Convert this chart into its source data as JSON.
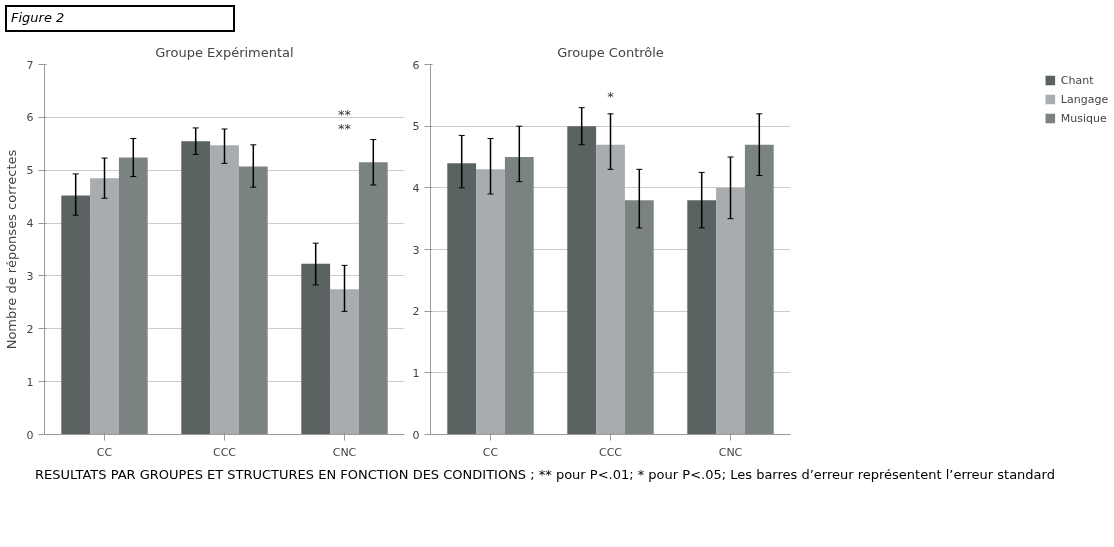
{
  "chart_data": [
    {
      "type": "bar",
      "title": "Groupe Expérimental",
      "ylabel": "Nombre de réponses correctes",
      "categories": [
        "CC",
        "CCC",
        "CNC"
      ],
      "ylim": [
        0,
        7
      ],
      "yticks": [
        0,
        1,
        2,
        3,
        4,
        5,
        6,
        7
      ],
      "grid": "y",
      "series": [
        {
          "color": "#5a6262",
          "values": [
            4.52,
            5.55,
            3.23
          ],
          "errors": [
            [
              4.15,
              4.93
            ],
            [
              5.3,
              5.8
            ],
            [
              2.83,
              3.62
            ]
          ]
        },
        {
          "color": "#a9acae",
          "values": [
            4.85,
            5.47,
            2.75
          ],
          "errors": [
            [
              4.47,
              5.23
            ],
            [
              5.13,
              5.78
            ],
            [
              2.33,
              3.2
            ]
          ]
        },
        {
          "color": "#7b8282",
          "values": [
            5.24,
            5.07,
            5.15
          ],
          "errors": [
            [
              4.88,
              5.6
            ],
            [
              4.68,
              5.48
            ],
            [
              4.72,
              5.58
            ]
          ]
        }
      ],
      "annotations": [
        "Figure 2",
        "**",
        "**"
      ]
    },
    {
      "type": "bar",
      "title": "Groupe Contrôle",
      "categories": [
        "CC",
        "CCC",
        "CNC"
      ],
      "ylim": [
        0,
        6
      ],
      "yticks": [
        0,
        1,
        2,
        3,
        4,
        5,
        6
      ],
      "grid": "y",
      "legend": "top right",
      "series": [
        {
          "name": "Chant",
          "color": "#5a6262",
          "values": [
            4.4,
            5.0,
            3.8
          ],
          "errors": [
            [
              4.0,
              4.85
            ],
            [
              4.7,
              5.3
            ],
            [
              3.35,
              4.25
            ]
          ]
        },
        {
          "name": "Langage",
          "color": "#a9acae",
          "values": [
            4.3,
            4.7,
            4.0
          ],
          "errors": [
            [
              3.9,
              4.8
            ],
            [
              4.3,
              5.2
            ],
            [
              3.5,
              4.5
            ]
          ]
        },
        {
          "name": "Musique",
          "color": "#7b8282",
          "values": [
            4.5,
            3.8,
            4.7
          ],
          "errors": [
            [
              4.1,
              5.0
            ],
            [
              3.35,
              4.3
            ],
            [
              4.2,
              5.2
            ]
          ]
        }
      ],
      "annotations": [
        "*",
        "RESULTATS PAR GROUPES ET STRUCTURES EN FONCTION DES CONDITIONS ; ** pour P<.01; * pour P<.05;  Les barres d’erreur représentent l’erreur standard"
      ]
    }
  ]
}
